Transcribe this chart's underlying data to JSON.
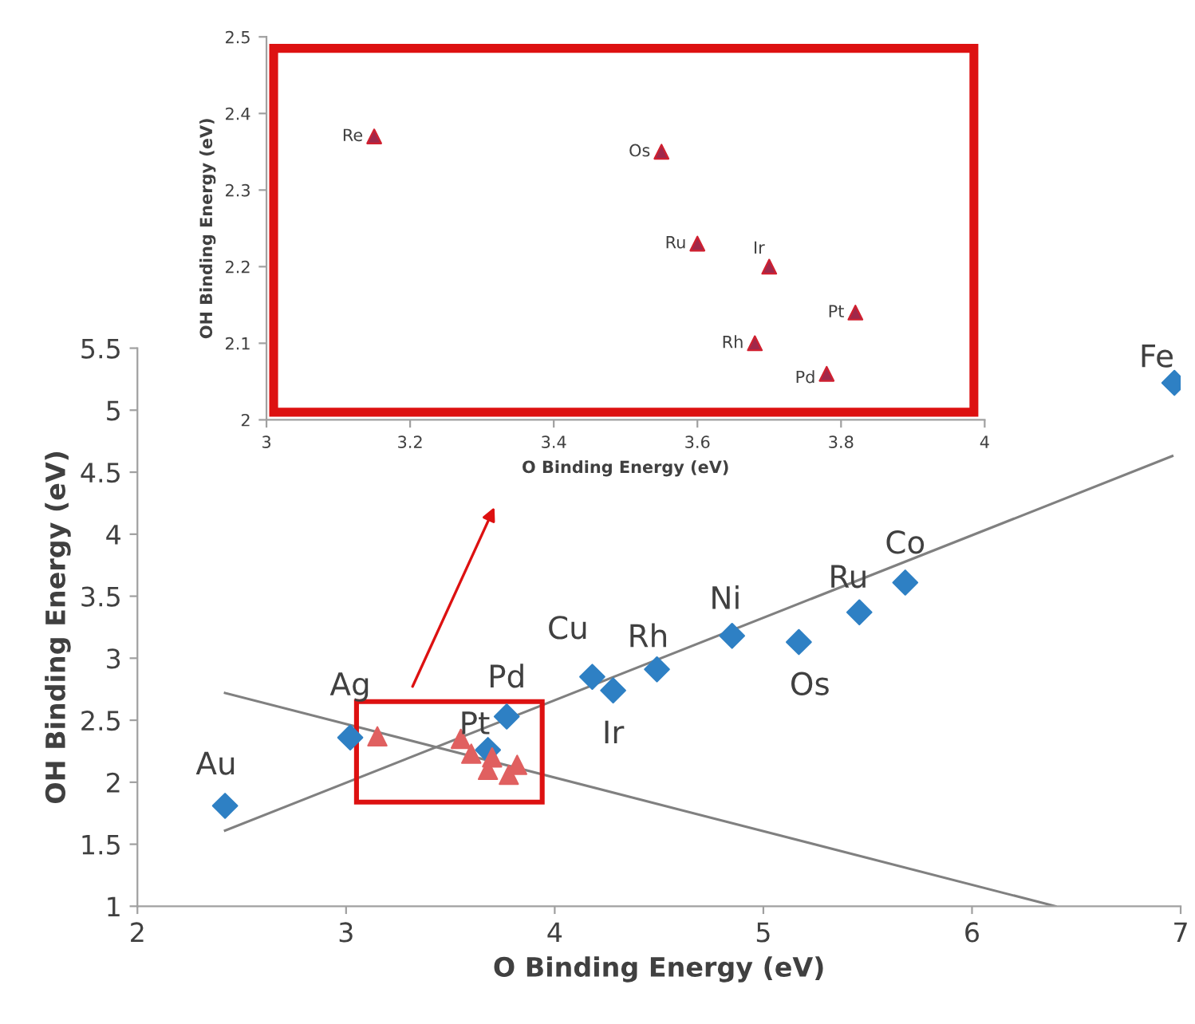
{
  "chart_data": [
    {
      "type": "scatter",
      "xlabel": "O Binding Energy (eV)",
      "ylabel": "OH Binding Energy (eV)",
      "xlim": [
        2,
        7
      ],
      "ylim": [
        1,
        5.5
      ],
      "xticks": [
        2,
        3,
        4,
        5,
        6,
        7
      ],
      "yticks": [
        1,
        1.5,
        2,
        2.5,
        3,
        3.5,
        4,
        4.5,
        5,
        5.5
      ],
      "grid": false,
      "legend": false,
      "series": [
        {
          "marker": "diamond",
          "color": "#2e80c4",
          "x": [
            2.42,
            3.02,
            3.68,
            3.77,
            4.18,
            4.28,
            4.49,
            4.85,
            5.17,
            5.46,
            5.68,
            6.97
          ],
          "values": [
            1.81,
            2.36,
            2.26,
            2.53,
            2.85,
            2.74,
            2.91,
            3.18,
            3.13,
            3.37,
            3.61,
            5.22
          ]
        },
        {
          "marker": "triangle",
          "color": "#e06060",
          "x": [
            3.15,
            3.55,
            3.6,
            3.7,
            3.82,
            3.68,
            3.78
          ],
          "values": [
            2.37,
            2.35,
            2.23,
            2.2,
            2.14,
            2.1,
            2.06
          ]
        },
        {
          "type": "line",
          "color": "#808080",
          "x": [
            2.42,
            6.96
          ],
          "values": [
            1.61,
            4.63
          ]
        },
        {
          "type": "line",
          "color": "#808080",
          "x": [
            2.42,
            6.4
          ],
          "values": [
            2.72,
            1.0
          ]
        }
      ],
      "annotations": [
        {
          "text": "Au",
          "x": 2.42,
          "y": 1.81
        },
        {
          "text": "Ag",
          "x": 3.02,
          "y": 2.36
        },
        {
          "text": "Pt",
          "x": 3.68,
          "y": 2.26
        },
        {
          "text": "Pd",
          "x": 3.77,
          "y": 2.53
        },
        {
          "text": "Cu",
          "x": 4.18,
          "y": 2.85
        },
        {
          "text": "Ir",
          "x": 4.28,
          "y": 2.74
        },
        {
          "text": "Rh",
          "x": 4.49,
          "y": 2.91
        },
        {
          "text": "Ni",
          "x": 4.85,
          "y": 3.18
        },
        {
          "text": "Os",
          "x": 5.17,
          "y": 3.13
        },
        {
          "text": "Ru",
          "x": 5.46,
          "y": 3.37
        },
        {
          "text": "Co",
          "x": 5.68,
          "y": 3.61
        },
        {
          "text": "Fe",
          "x": 6.97,
          "y": 5.22
        }
      ]
    },
    {
      "type": "scatter",
      "xlabel": "O Binding Energy (eV)",
      "ylabel": "OH Binding Energy (eV)",
      "xlim": [
        3,
        4
      ],
      "ylim": [
        2,
        2.5
      ],
      "xticks": [
        3,
        3.2,
        3.4,
        3.6,
        3.8,
        4
      ],
      "yticks": [
        2,
        2.1,
        2.2,
        2.3,
        2.4,
        2.5
      ],
      "grid": false,
      "legend": false,
      "series": [
        {
          "marker": "triangle",
          "color": "#a0284a",
          "x": [
            3.15,
            3.55,
            3.6,
            3.7,
            3.82,
            3.68,
            3.78
          ],
          "values": [
            2.37,
            2.35,
            2.23,
            2.2,
            2.14,
            2.1,
            2.06
          ]
        }
      ],
      "annotations": [
        {
          "text": "Re",
          "x": 3.15,
          "y": 2.37
        },
        {
          "text": "Os",
          "x": 3.55,
          "y": 2.35
        },
        {
          "text": "Ru",
          "x": 3.6,
          "y": 2.23
        },
        {
          "text": "Ir",
          "x": 3.7,
          "y": 2.2
        },
        {
          "text": "Pt",
          "x": 3.82,
          "y": 2.14
        },
        {
          "text": "Rh",
          "x": 3.68,
          "y": 2.1
        },
        {
          "text": "Pd",
          "x": 3.78,
          "y": 2.06
        }
      ]
    }
  ]
}
